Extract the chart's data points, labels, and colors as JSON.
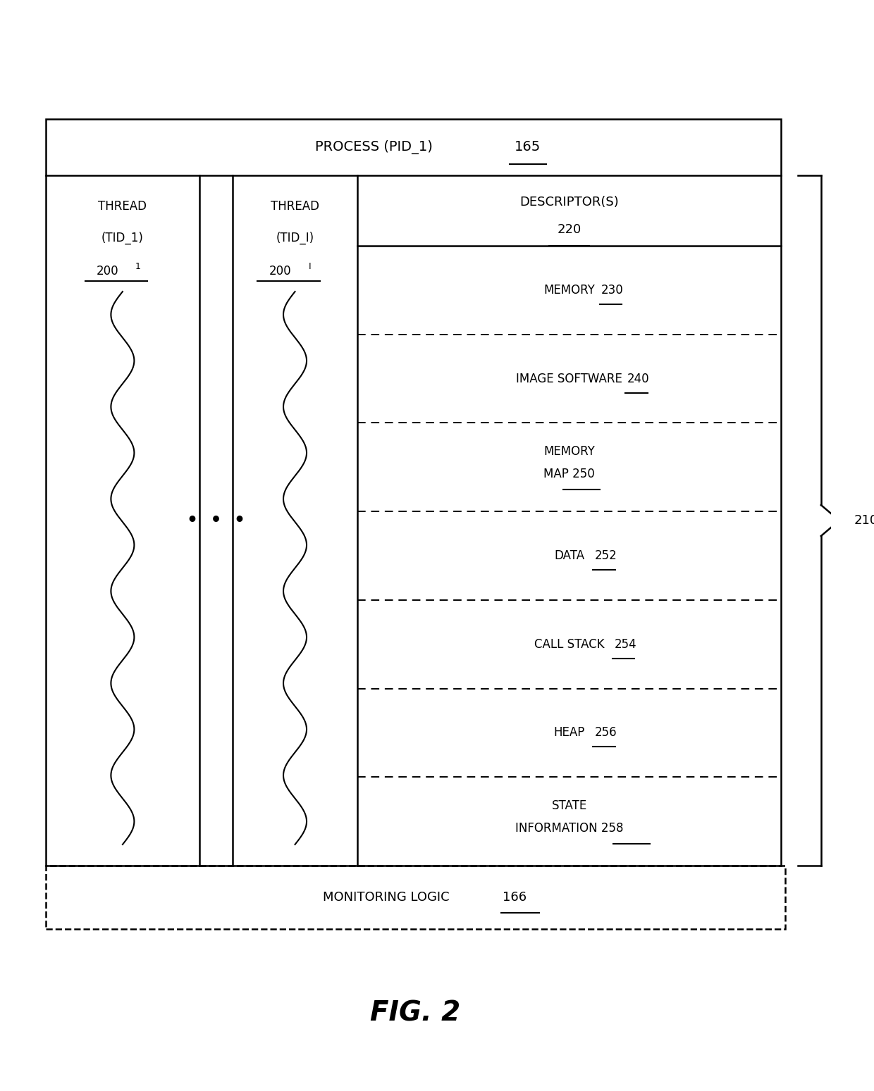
{
  "bg_color": "#ffffff",
  "fig_width": 12.4,
  "fig_height": 15.49,
  "title": "FIG. 2",
  "process_label": "PROCESS (PID_1)",
  "process_ref": "165",
  "monitoring_label": "MONITORING LOGIC",
  "monitoring_ref": "166",
  "thread1_lines": [
    "THREAD",
    "(TID_1)"
  ],
  "thread1_ref": "200",
  "thread1_sub": "1",
  "threadi_lines": [
    "THREAD",
    "(TID_I)"
  ],
  "threadi_ref": "200",
  "threadi_sub": "I",
  "dots": "•  •  •",
  "descriptor_label": "DESCRIPTOR(S)",
  "descriptor_ref": "220",
  "brace_ref": "210",
  "memory_sections": [
    {
      "label": "MEMORY",
      "ref": "230",
      "multiline": false
    },
    {
      "label": "IMAGE SOFTWARE",
      "ref": "240",
      "multiline": false
    },
    {
      "label": "MEMORY\nMAP",
      "ref": "250",
      "multiline": true
    },
    {
      "label": "DATA",
      "ref": "252",
      "multiline": false
    },
    {
      "label": "CALL STACK",
      "ref": "254",
      "multiline": false
    },
    {
      "label": "HEAP",
      "ref": "256",
      "multiline": false
    },
    {
      "label": "STATE\nINFORMATION",
      "ref": "258",
      "multiline": true
    }
  ]
}
